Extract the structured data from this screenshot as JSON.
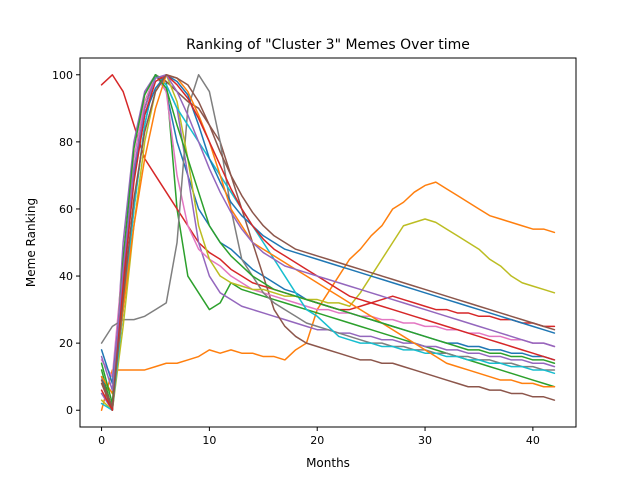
{
  "chart_data": {
    "type": "line",
    "title": "Ranking of \"Cluster 3\" Memes Over time",
    "xlabel": "Months",
    "ylabel": "Meme Ranking",
    "xlim": [
      -2,
      44
    ],
    "ylim": [
      -5,
      105
    ],
    "xticks": [
      0,
      10,
      20,
      30,
      40
    ],
    "yticks": [
      0,
      20,
      40,
      60,
      80,
      100
    ],
    "grid": false,
    "legend": "none",
    "palette": [
      "#1f77b4",
      "#ff7f0e",
      "#2ca02c",
      "#d62728",
      "#9467bd",
      "#8c564b",
      "#e377c2",
      "#7f7f7f",
      "#bcbd22",
      "#17becf"
    ],
    "series": [
      {
        "values": [
          10,
          0,
          30,
          60,
          85,
          100,
          95,
          80,
          70,
          60,
          55,
          50,
          48,
          45,
          42,
          40,
          38,
          36,
          35,
          33,
          32,
          31,
          30,
          29,
          28,
          27,
          26,
          25,
          24,
          23,
          22,
          21,
          20,
          20,
          19,
          19,
          18,
          18,
          17,
          17,
          16,
          16,
          15
        ]
      },
      {
        "values": [
          0,
          12,
          12,
          12,
          12,
          13,
          14,
          14,
          15,
          16,
          18,
          17,
          18,
          17,
          17,
          16,
          16,
          15,
          18,
          20,
          30,
          35,
          40,
          45,
          48,
          52,
          55,
          60,
          62,
          65,
          67,
          68,
          66,
          64,
          62,
          60,
          58,
          57,
          56,
          55,
          54,
          54,
          53
        ]
      },
      {
        "values": [
          12,
          0,
          40,
          70,
          90,
          100,
          98,
          60,
          40,
          35,
          30,
          32,
          38,
          36,
          35,
          34,
          33,
          32,
          31,
          30,
          29,
          28,
          27,
          26,
          25,
          24,
          23,
          22,
          21,
          20,
          19,
          18,
          17,
          16,
          15,
          14,
          13,
          12,
          11,
          10,
          9,
          8,
          7
        ]
      },
      {
        "values": [
          97,
          100,
          95,
          85,
          75,
          70,
          65,
          60,
          55,
          50,
          47,
          45,
          42,
          40,
          38,
          37,
          36,
          35,
          34,
          33,
          32,
          31,
          30,
          30,
          31,
          32,
          33,
          34,
          33,
          32,
          31,
          30,
          30,
          29,
          29,
          28,
          28,
          27,
          27,
          26,
          26,
          25,
          25
        ]
      },
      {
        "values": [
          5,
          0,
          50,
          80,
          95,
          100,
          97,
          90,
          70,
          50,
          40,
          35,
          33,
          31,
          30,
          29,
          28,
          27,
          26,
          25,
          24,
          24,
          23,
          23,
          22,
          22,
          21,
          21,
          20,
          20,
          19,
          19,
          18,
          18,
          17,
          17,
          16,
          16,
          15,
          15,
          14,
          14,
          13
        ]
      },
      {
        "values": [
          8,
          0,
          35,
          70,
          90,
          100,
          98,
          95,
          92,
          90,
          85,
          80,
          70,
          60,
          50,
          40,
          30,
          25,
          22,
          20,
          19,
          18,
          17,
          16,
          15,
          15,
          14,
          14,
          13,
          12,
          11,
          10,
          9,
          8,
          7,
          7,
          6,
          6,
          5,
          5,
          4,
          4,
          3
        ]
      },
      {
        "values": [
          15,
          10,
          45,
          75,
          92,
          100,
          95,
          70,
          55,
          48,
          45,
          43,
          40,
          38,
          36,
          35,
          34,
          33,
          32,
          31,
          30,
          30,
          29,
          29,
          28,
          28,
          27,
          27,
          26,
          26,
          25,
          25,
          24,
          24,
          23,
          23,
          22,
          22,
          21,
          21,
          20,
          20,
          19
        ]
      },
      {
        "values": [
          20,
          25,
          27,
          27,
          28,
          30,
          32,
          50,
          90,
          100,
          95,
          80,
          60,
          45,
          40,
          35,
          32,
          30,
          28,
          26,
          25,
          24,
          23,
          22,
          21,
          20,
          20,
          19,
          19,
          18,
          18,
          17,
          17,
          16,
          16,
          15,
          15,
          14,
          14,
          13,
          13,
          12,
          12
        ]
      },
      {
        "values": [
          3,
          0,
          25,
          55,
          80,
          95,
          100,
          92,
          75,
          55,
          45,
          40,
          38,
          37,
          36,
          36,
          35,
          34,
          34,
          33,
          33,
          32,
          32,
          31,
          35,
          40,
          45,
          50,
          55,
          56,
          57,
          56,
          54,
          52,
          50,
          48,
          45,
          43,
          40,
          38,
          37,
          36,
          35
        ]
      },
      {
        "values": [
          2,
          0,
          30,
          60,
          85,
          100,
          97,
          90,
          85,
          80,
          75,
          70,
          65,
          60,
          55,
          50,
          45,
          40,
          35,
          30,
          28,
          25,
          22,
          21,
          20,
          20,
          19,
          19,
          18,
          18,
          17,
          17,
          16,
          16,
          15,
          15,
          14,
          14,
          13,
          13,
          12,
          12,
          11
        ]
      },
      {
        "values": [
          18,
          8,
          40,
          70,
          88,
          96,
          100,
          98,
          94,
          85,
          75,
          68,
          62,
          58,
          55,
          52,
          50,
          48,
          47,
          46,
          45,
          44,
          43,
          42,
          41,
          40,
          39,
          38,
          37,
          36,
          35,
          34,
          33,
          32,
          31,
          30,
          29,
          28,
          27,
          26,
          25,
          24,
          23
        ]
      },
      {
        "values": [
          10,
          5,
          30,
          55,
          75,
          90,
          100,
          99,
          95,
          88,
          80,
          70,
          60,
          55,
          50,
          48,
          46,
          44,
          42,
          40,
          38,
          36,
          34,
          32,
          30,
          28,
          26,
          24,
          22,
          20,
          18,
          16,
          14,
          13,
          12,
          11,
          10,
          9,
          9,
          8,
          8,
          7,
          7
        ]
      },
      {
        "values": [
          14,
          2,
          45,
          78,
          94,
          100,
          96,
          85,
          75,
          65,
          55,
          50,
          46,
          43,
          40,
          38,
          36,
          35,
          34,
          33,
          32,
          31,
          30,
          29,
          28,
          27,
          26,
          25,
          24,
          23,
          22,
          21,
          20,
          19,
          18,
          18,
          17,
          17,
          16,
          16,
          15,
          15,
          14
        ]
      },
      {
        "values": [
          6,
          0,
          38,
          68,
          88,
          98,
          100,
          97,
          93,
          87,
          80,
          73,
          66,
          60,
          55,
          51,
          48,
          46,
          44,
          42,
          40,
          38,
          36,
          34,
          33,
          32,
          31,
          30,
          29,
          28,
          27,
          26,
          25,
          24,
          23,
          22,
          21,
          20,
          19,
          18,
          17,
          16,
          15
        ]
      },
      {
        "values": [
          16,
          6,
          42,
          72,
          90,
          99,
          100,
          95,
          88,
          80,
          72,
          65,
          59,
          54,
          50,
          47,
          45,
          43,
          42,
          41,
          40,
          39,
          38,
          37,
          36,
          35,
          34,
          33,
          32,
          31,
          30,
          29,
          28,
          27,
          26,
          25,
          24,
          23,
          22,
          21,
          20,
          20,
          19
        ]
      },
      {
        "values": [
          9,
          1,
          33,
          63,
          83,
          95,
          100,
          99,
          97,
          92,
          85,
          77,
          70,
          64,
          59,
          55,
          52,
          50,
          48,
          47,
          46,
          45,
          44,
          43,
          42,
          41,
          40,
          39,
          38,
          37,
          36,
          35,
          34,
          33,
          32,
          31,
          30,
          29,
          28,
          27,
          26,
          25,
          24
        ]
      }
    ]
  }
}
